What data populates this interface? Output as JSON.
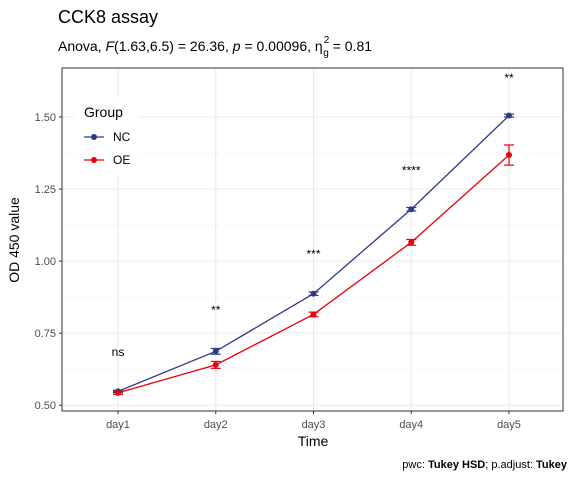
{
  "chart_data": {
    "type": "line",
    "title": "CCK8 assay",
    "subtitle": {
      "prefix": "Anova, ",
      "f_symbol": "F",
      "f_value": "(1.63,6.5) = 26.36, ",
      "p_symbol": "p",
      "p_value": " = 0.00096, ",
      "eta_symbol": "η",
      "eta_sup": "2",
      "eta_sub": "g",
      "eta_value": " = 0.81"
    },
    "xlabel": "Time",
    "ylabel": "OD 450 value",
    "categories": [
      "day1",
      "day2",
      "day3",
      "day4",
      "day5"
    ],
    "ylim": [
      0.48,
      1.67
    ],
    "yticks": [
      0.5,
      0.75,
      1.0,
      1.25,
      1.5
    ],
    "ytick_labels": [
      "0.50",
      "0.75",
      "1.00",
      "1.25",
      "1.50"
    ],
    "grid": true,
    "legend": {
      "title": "Group",
      "position": "top-left"
    },
    "series": [
      {
        "name": "NC",
        "color": "#2E3A87",
        "values": [
          0.548,
          0.687,
          0.887,
          1.18,
          1.505
        ],
        "errors": [
          0.004,
          0.01,
          0.006,
          0.006,
          0.005
        ]
      },
      {
        "name": "OE",
        "color": "#E8000B",
        "values": [
          0.543,
          0.64,
          0.815,
          1.065,
          1.368
        ],
        "errors": [
          0.005,
          0.012,
          0.008,
          0.01,
          0.035
        ]
      }
    ],
    "significance": [
      {
        "label": "ns",
        "y": 0.685
      },
      {
        "label": "**",
        "y": 0.83
      },
      {
        "label": "***",
        "y": 1.025
      },
      {
        "label": "****",
        "y": 1.315
      },
      {
        "label": "**",
        "y": 1.635
      }
    ],
    "caption": {
      "pwc_label": "pwc: ",
      "pwc_value": "Tukey HSD",
      "sep": "; p.adjust: ",
      "adjust_value": "Tukey"
    }
  }
}
